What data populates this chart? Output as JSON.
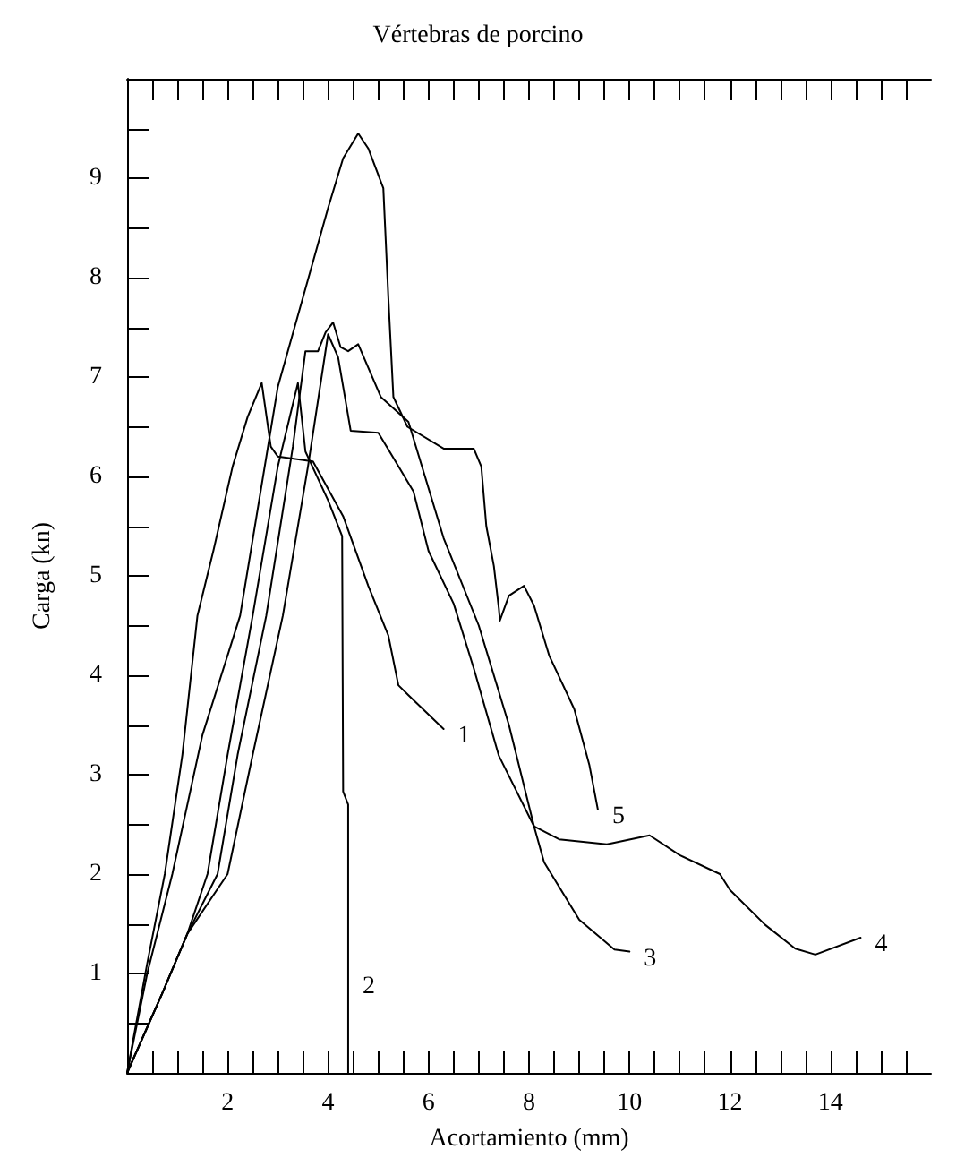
{
  "chart_data": {
    "type": "line",
    "title": "Vértebras de porcino",
    "xlabel": "Acortamiento (mm)",
    "ylabel": "Carga (kn)",
    "xlim": [
      0,
      16
    ],
    "ylim": [
      0,
      10
    ],
    "xticks": [
      {
        "value": 0.5,
        "label": null
      },
      {
        "value": 1,
        "label": null
      },
      {
        "value": 1.5,
        "label": null
      },
      2,
      {
        "value": 2.5,
        "label": null
      },
      {
        "value": 3,
        "label": null
      },
      {
        "value": 3.5,
        "label": null
      },
      4,
      {
        "value": 4.5,
        "label": null
      },
      {
        "value": 5,
        "label": null
      },
      {
        "value": 5.5,
        "label": null
      },
      6,
      {
        "value": 6.5,
        "label": null
      },
      {
        "value": 7,
        "label": null
      },
      {
        "value": 7.5,
        "label": null
      },
      8,
      {
        "value": 8.5,
        "label": null
      },
      {
        "value": 9,
        "label": null
      },
      {
        "value": 9.5,
        "label": null
      },
      10,
      {
        "value": 10.5,
        "label": null
      },
      {
        "value": 11,
        "label": null
      },
      {
        "value": 11.5,
        "label": null
      },
      12,
      {
        "value": 12.5,
        "label": null
      },
      {
        "value": 13,
        "label": null
      },
      {
        "value": 13.5,
        "label": null
      },
      14,
      {
        "value": 14.5,
        "label": null
      },
      {
        "value": 15,
        "label": null
      },
      {
        "value": 15.5,
        "label": null
      }
    ],
    "yticks": [
      {
        "value": 0.5,
        "label": null
      },
      1,
      {
        "value": 1.5,
        "label": null
      },
      2,
      {
        "value": 2.5,
        "label": null
      },
      3,
      {
        "value": 3.5,
        "label": null
      },
      4,
      {
        "value": 4.5,
        "label": null
      },
      5,
      {
        "value": 5.5,
        "label": null
      },
      6,
      {
        "value": 6.5,
        "label": null
      },
      7,
      {
        "value": 7.5,
        "label": null
      },
      8,
      {
        "value": 8.5,
        "label": null
      },
      9,
      {
        "value": 9.5,
        "label": null
      }
    ],
    "grid": false,
    "marker": "none",
    "line_style": "solid",
    "series": [
      {
        "name": "1",
        "color": "#000000",
        "x": [
          0,
          0.4,
          0.75,
          1.1,
          1.4,
          1.72,
          2.1,
          2.4,
          2.68,
          2.86,
          3.0,
          3.7,
          4.3,
          4.8,
          5.2,
          5.4,
          5.6,
          6.3
        ],
        "values": [
          0,
          1.1,
          2,
          3.2,
          4.6,
          5.26,
          6.1,
          6.6,
          6.94,
          6.3,
          6.2,
          6.15,
          5.6,
          4.9,
          4.4,
          3.9,
          3.8,
          3.46
        ]
      },
      {
        "name": "2",
        "color": "#000000",
        "x": [
          0,
          0.7,
          1.2,
          1.6,
          2.0,
          2.5,
          3.0,
          3.4,
          3.55,
          4.0,
          4.28,
          4.3,
          4.4,
          4.4
        ],
        "values": [
          0,
          0.8,
          1.4,
          2,
          3.2,
          4.6,
          6.1,
          6.94,
          6.25,
          5.76,
          5.4,
          2.83,
          2.7,
          0
        ]
      },
      {
        "name": "3",
        "color": "#000000",
        "x": [
          0,
          0.7,
          1.2,
          1.8,
          2.2,
          2.77,
          3.3,
          3.55,
          3.8,
          3.95,
          4.1,
          4.25,
          4.4,
          4.6,
          5.05,
          5.6,
          6.3,
          7.0,
          7.6,
          8.1,
          8.3,
          9.0,
          9.7,
          10.0
        ],
        "values": [
          0,
          0.8,
          1.4,
          2,
          3.2,
          4.6,
          6.3,
          7.26,
          7.26,
          7.45,
          7.55,
          7.3,
          7.26,
          7.33,
          6.8,
          6.55,
          5.38,
          4.5,
          3.5,
          2.48,
          2.12,
          1.54,
          1.24,
          1.22
        ]
      },
      {
        "name": "4",
        "color": "#000000",
        "x": [
          0,
          0.7,
          1.2,
          2.0,
          2.5,
          3.1,
          3.6,
          4.0,
          4.2,
          4.45,
          5.0,
          5.7,
          6.0,
          6.5,
          6.9,
          7.4,
          8.1,
          8.6,
          9.55,
          10.4,
          11.0,
          11.8,
          12.0,
          12.7,
          13.3,
          13.7,
          14.6
        ],
        "values": [
          0,
          0.8,
          1.4,
          2,
          3.2,
          4.6,
          6.1,
          7.43,
          7.2,
          6.46,
          6.44,
          5.85,
          5.25,
          4.72,
          4.07,
          3.19,
          2.48,
          2.35,
          2.3,
          2.39,
          2.19,
          2.0,
          1.84,
          1.49,
          1.25,
          1.19,
          1.36
        ]
      },
      {
        "name": "5",
        "color": "#000000",
        "x": [
          0,
          0.4,
          0.9,
          1.5,
          2.25,
          3.0,
          3.5,
          4.0,
          4.3,
          4.6,
          4.8,
          5.1,
          5.2,
          5.3,
          5.58,
          6.3,
          6.9,
          7.05,
          7.15,
          7.3,
          7.4,
          7.42,
          7.6,
          7.9,
          8.1,
          8.4,
          8.9,
          9.2,
          9.37
        ],
        "values": [
          0,
          1.0,
          2,
          3.4,
          4.6,
          6.9,
          7.8,
          8.7,
          9.2,
          9.45,
          9.3,
          8.9,
          7.8,
          6.8,
          6.5,
          6.28,
          6.28,
          6.1,
          5.5,
          5.1,
          4.67,
          4.55,
          4.8,
          4.9,
          4.7,
          4.2,
          3.66,
          3.1,
          2.65
        ]
      }
    ]
  }
}
